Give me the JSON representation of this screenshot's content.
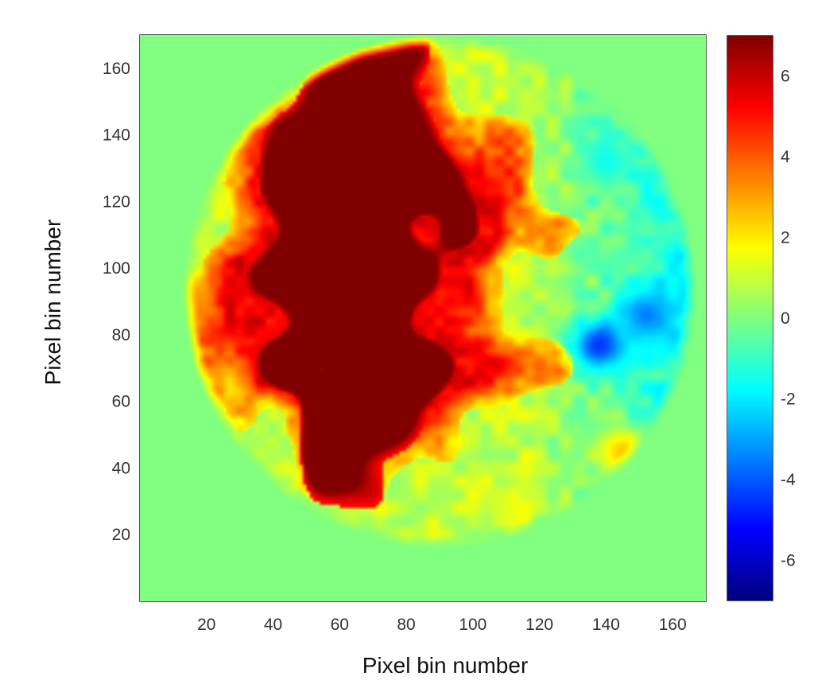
{
  "chart_data": {
    "type": "heatmap",
    "title": "",
    "xlabel": "Pixel bin number",
    "ylabel": "Pixel bin number",
    "xlim": [
      0,
      170
    ],
    "ylim": [
      0,
      170
    ],
    "xticks": [
      20,
      40,
      60,
      80,
      100,
      120,
      140,
      160
    ],
    "yticks": [
      20,
      40,
      60,
      80,
      100,
      120,
      140,
      160
    ],
    "colormap": "jet",
    "clim": [
      -7,
      7
    ],
    "colorbar_ticks": [
      -6,
      -4,
      -2,
      0,
      2,
      4,
      6
    ],
    "grid_size": [
      170,
      170
    ],
    "background_value": 0,
    "regions": [
      {
        "feature": "circular data region",
        "cx": 90,
        "cy": 93,
        "r": 77
      },
      {
        "feature": "saturated high plateau",
        "x_range": [
          40,
          95
        ],
        "y_range": [
          30,
          165
        ],
        "value": 7
      },
      {
        "feature": "red/orange band",
        "x_range": [
          22,
          120
        ],
        "y_range": [
          35,
          160
        ],
        "value": 4.5
      },
      {
        "feature": "negative blob",
        "cx": 138,
        "cy": 77,
        "value": -4.5
      },
      {
        "feature": "negative blob",
        "cx": 152,
        "cy": 86,
        "value": -3.5
      },
      {
        "feature": "negative patch",
        "cx": 140,
        "cy": 132,
        "value": -1.5
      },
      {
        "feature": "orange patch",
        "cx": 14,
        "cy": 92,
        "value": 3.5
      },
      {
        "feature": "yellow patch",
        "cx": 145,
        "cy": 45,
        "value": 2.5
      }
    ]
  }
}
